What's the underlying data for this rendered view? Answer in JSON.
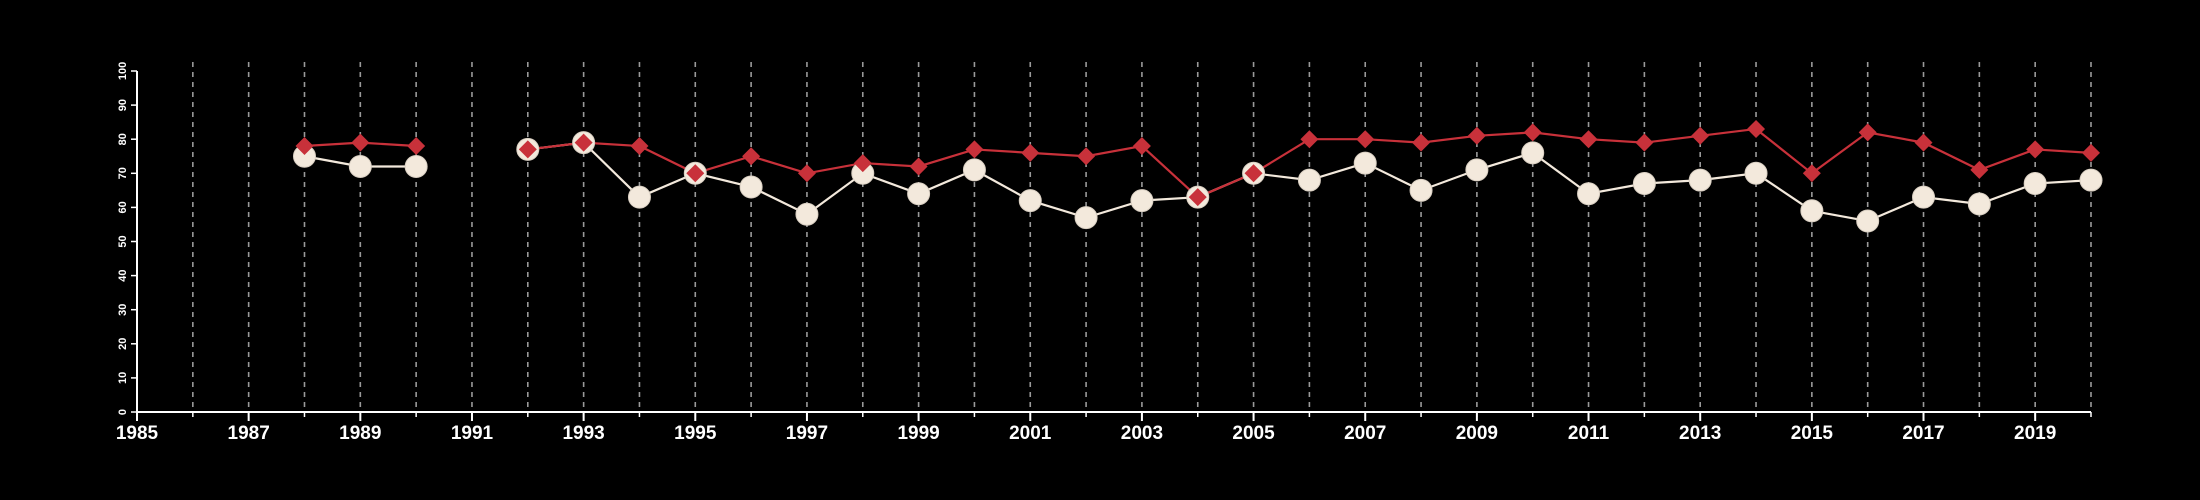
{
  "chart_data": {
    "type": "line",
    "title": "",
    "xlabel": "",
    "ylabel": "",
    "xlim": [
      1985,
      2020
    ],
    "ylim": [
      0,
      100
    ],
    "x_ticks": [
      "1985",
      "1987",
      "1989",
      "1991",
      "1993",
      "1995",
      "1997",
      "1999",
      "2001",
      "2003",
      "2005",
      "2007",
      "2009",
      "2011",
      "2013",
      "2015",
      "2017",
      "2019"
    ],
    "y_ticks": [
      "0",
      "10",
      "20",
      "30",
      "40",
      "50",
      "60",
      "70",
      "80",
      "90",
      "100"
    ],
    "grid": "vertical dashed lines at every year",
    "legend": "none",
    "x": [
      1985,
      1986,
      1987,
      1988,
      1989,
      1990,
      1991,
      1992,
      1993,
      1994,
      1995,
      1996,
      1997,
      1998,
      1999,
      2000,
      2001,
      2002,
      2003,
      2004,
      2005,
      2006,
      2007,
      2008,
      2009,
      2010,
      2011,
      2012,
      2013,
      2014,
      2015,
      2016,
      2017,
      2018,
      2019,
      2020
    ],
    "series": [
      {
        "marker": "diamond",
        "color": "#c8313a",
        "values": [
          null,
          null,
          null,
          78,
          79,
          78,
          null,
          77,
          79,
          78,
          70,
          75,
          70,
          73,
          72,
          77,
          76,
          75,
          78,
          63,
          70,
          80,
          80,
          79,
          81,
          82,
          80,
          79,
          81,
          83,
          70,
          82,
          79,
          71,
          77,
          76
        ]
      },
      {
        "marker": "circle",
        "color": "#f3e9dc",
        "values": [
          null,
          null,
          null,
          75,
          72,
          72,
          null,
          77,
          79,
          63,
          70,
          66,
          58,
          70,
          64,
          71,
          62,
          57,
          62,
          63,
          70,
          68,
          73,
          65,
          71,
          76,
          64,
          67,
          68,
          70,
          59,
          56,
          63,
          61,
          67,
          68
        ]
      }
    ]
  }
}
